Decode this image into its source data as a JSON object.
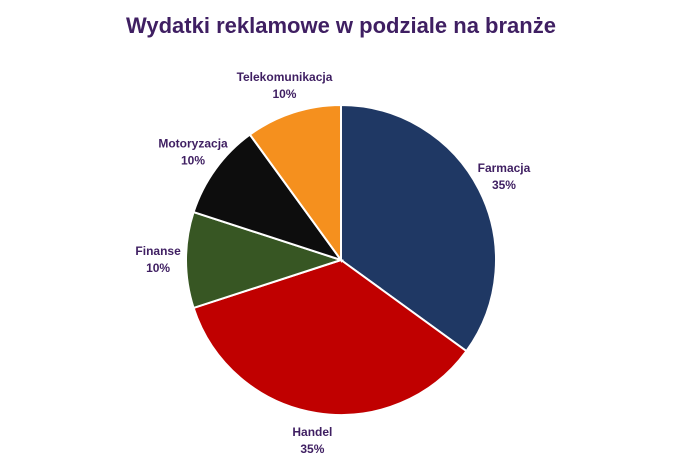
{
  "chart_data": {
    "type": "pie",
    "title": "Wydatki reklamowe w podziale na branże",
    "categories": [
      "Farmacja",
      "Handel",
      "Finanse",
      "Motoryzacja",
      "Telekomunikacja"
    ],
    "values": [
      35,
      35,
      10,
      10,
      10
    ],
    "value_labels": [
      "35%",
      "35%",
      "10%",
      "10%",
      "10%"
    ],
    "colors": [
      "#1f3864",
      "#c00000",
      "#375623",
      "#0d0d0d",
      "#f5901e"
    ]
  }
}
